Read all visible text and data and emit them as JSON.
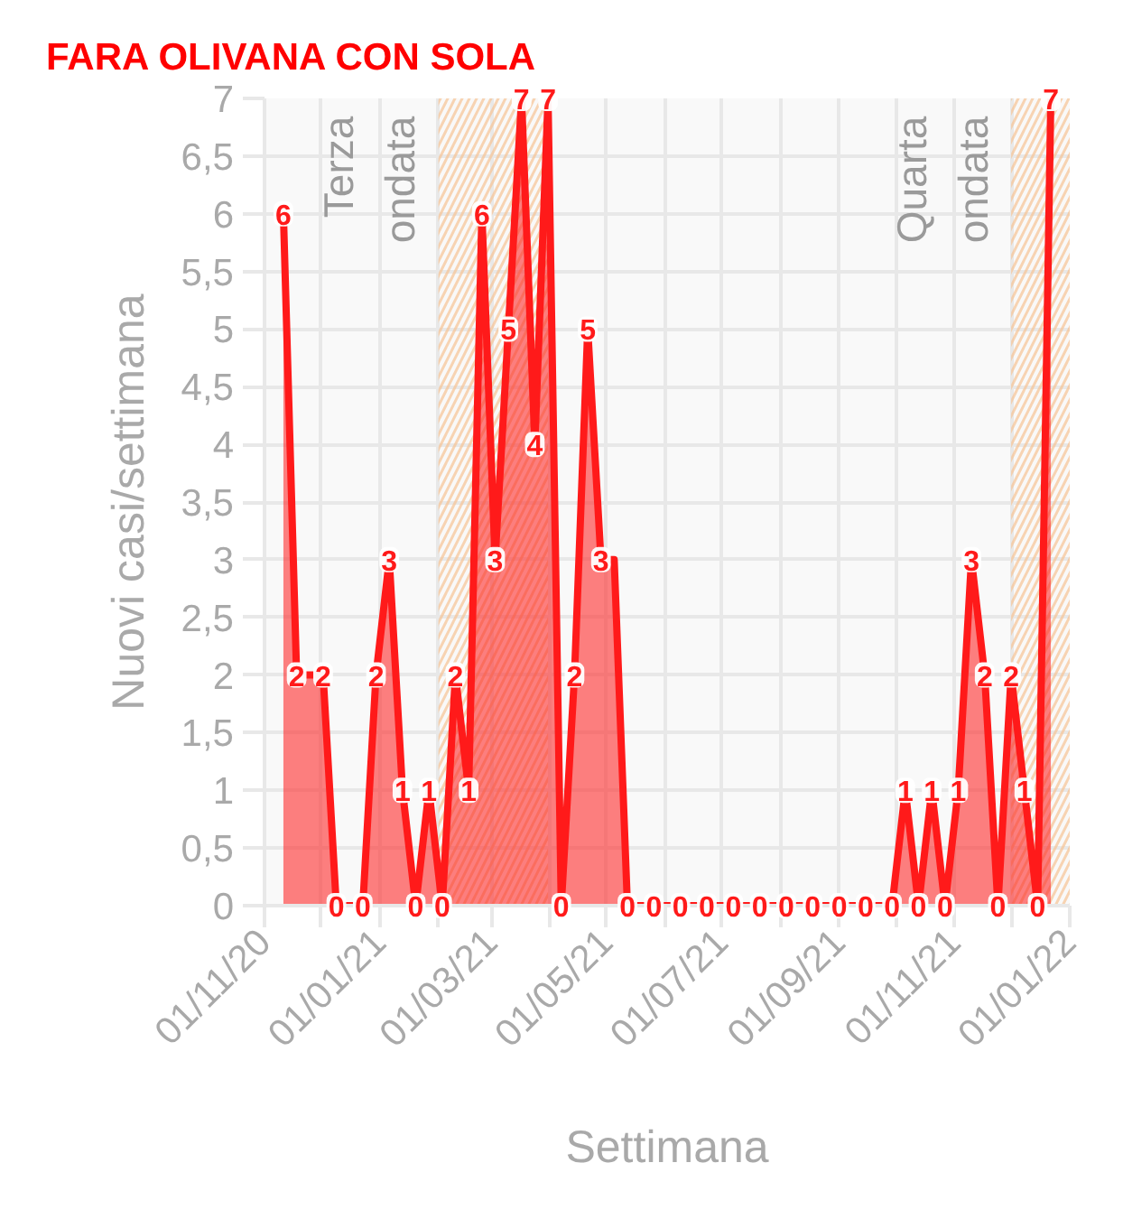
{
  "chart_data": {
    "type": "area",
    "title": "FARA OLIVANA CON SOLA",
    "xlabel": "Settimana",
    "ylabel": "Nuovi casi/settimana",
    "x": [
      "2020-11-11",
      "2020-11-18",
      "2020-11-25",
      "2020-12-02",
      "2020-12-09",
      "2020-12-16",
      "2020-12-23",
      "2020-12-30",
      "2021-01-06",
      "2021-01-13",
      "2021-01-20",
      "2021-01-27",
      "2021-02-03",
      "2021-02-10",
      "2021-02-17",
      "2021-02-24",
      "2021-03-03",
      "2021-03-10",
      "2021-03-17",
      "2021-03-24",
      "2021-03-31",
      "2021-04-07",
      "2021-04-14",
      "2021-04-21",
      "2021-04-28",
      "2021-05-05",
      "2021-05-12",
      "2021-05-19",
      "2021-05-26",
      "2021-06-02",
      "2021-06-09",
      "2021-06-16",
      "2021-06-23",
      "2021-06-30",
      "2021-07-07",
      "2021-07-14",
      "2021-07-21",
      "2021-07-28",
      "2021-08-04",
      "2021-08-11",
      "2021-08-18",
      "2021-08-25",
      "2021-09-01",
      "2021-09-08",
      "2021-09-15",
      "2021-09-22",
      "2021-09-29",
      "2021-10-06",
      "2021-10-13",
      "2021-10-20",
      "2021-10-27",
      "2021-11-03",
      "2021-11-10",
      "2021-11-17",
      "2021-11-24",
      "2021-12-01",
      "2021-12-08",
      "2021-12-15",
      "2021-12-22"
    ],
    "values": [
      6,
      2,
      2,
      2,
      0,
      0,
      0,
      2,
      3,
      1,
      0,
      1,
      0,
      2,
      1,
      6,
      3,
      5,
      7,
      4,
      7,
      0,
      2,
      5,
      3,
      3,
      0,
      0,
      0,
      0,
      0,
      0,
      0,
      0,
      0,
      0,
      0,
      0,
      0,
      0,
      0,
      0,
      0,
      0,
      0,
      0,
      0,
      1,
      0,
      1,
      0,
      1,
      3,
      2,
      0,
      2,
      1,
      0,
      7
    ],
    "value_labels": [
      "6",
      "2",
      null,
      "2",
      "0",
      null,
      "0",
      "2",
      "3",
      "1",
      "0",
      "1",
      "0",
      "2",
      "1",
      "6",
      "3",
      "5",
      "7",
      "4",
      "7",
      "0",
      "2",
      "5",
      "3",
      null,
      "0",
      null,
      "0",
      null,
      "0",
      null,
      "0",
      null,
      "0",
      null,
      "0",
      null,
      "0",
      null,
      "0",
      null,
      "0",
      null,
      "0",
      null,
      "0",
      "1",
      "0",
      "1",
      "0",
      "1",
      "3",
      "2",
      "0",
      "2",
      "1",
      "0",
      "7"
    ],
    "color": "#ff1a1a",
    "xlim": [
      "2020-11-01",
      "2022-01-01"
    ],
    "xticks": [
      {
        "value": "2020-11-01",
        "label": "01/11/20"
      },
      {
        "value": "2020-12-01",
        "label": null
      },
      {
        "value": "2021-01-01",
        "label": "01/01/21"
      },
      {
        "value": "2021-02-01",
        "label": null
      },
      {
        "value": "2021-03-01",
        "label": "01/03/21"
      },
      {
        "value": "2021-04-01",
        "label": null
      },
      {
        "value": "2021-05-01",
        "label": "01/05/21"
      },
      {
        "value": "2021-06-01",
        "label": null
      },
      {
        "value": "2021-07-01",
        "label": "01/07/21"
      },
      {
        "value": "2021-08-01",
        "label": null
      },
      {
        "value": "2021-09-01",
        "label": "01/09/21"
      },
      {
        "value": "2021-10-01",
        "label": null
      },
      {
        "value": "2021-11-01",
        "label": "01/11/21"
      },
      {
        "value": "2021-12-01",
        "label": null
      },
      {
        "value": "2022-01-01",
        "label": "01/01/22"
      }
    ],
    "ylim": [
      0,
      7
    ],
    "yticks": [
      0,
      {
        "value": 0.5,
        "label": "0,5"
      },
      1,
      {
        "value": 1.5,
        "label": "1,5"
      },
      2,
      {
        "value": 2.5,
        "label": "2,5"
      },
      3,
      {
        "value": 3.5,
        "label": "3,5"
      },
      4,
      {
        "value": 4.5,
        "label": "4,5"
      },
      5,
      {
        "value": 5.5,
        "label": "5,5"
      },
      6,
      {
        "value": 6.5,
        "label": "6,5"
      },
      7
    ],
    "grid": true,
    "bands": [
      {
        "axis": "x",
        "from": "2021-02-01",
        "to": "2021-03-31",
        "color": "#f7c394"
      },
      {
        "axis": "x",
        "from": "2021-12-01",
        "to": "2022-01-01",
        "color": "#f7c394"
      }
    ],
    "annotations": [
      "Terza ondata",
      "Quarta ondata"
    ]
  }
}
